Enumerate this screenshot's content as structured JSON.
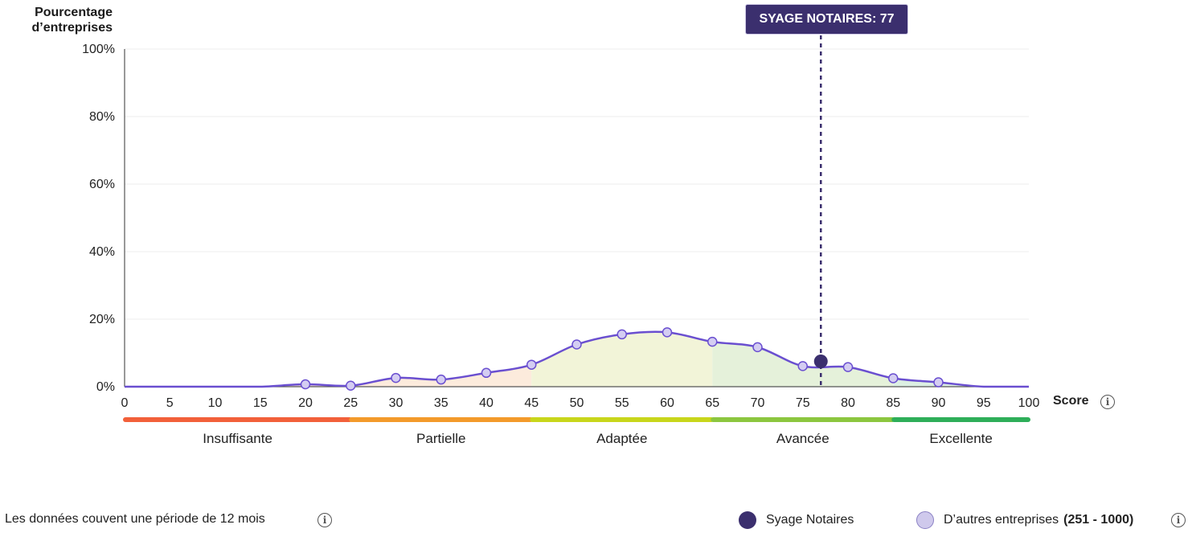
{
  "chart_data": {
    "type": "area",
    "ylabel": "Pourcentage d’entreprises",
    "xlabel": "Score",
    "xlim": [
      0,
      100
    ],
    "ylim": [
      0,
      100
    ],
    "x_ticks": [
      0,
      5,
      10,
      15,
      20,
      25,
      30,
      35,
      40,
      45,
      50,
      55,
      60,
      65,
      70,
      75,
      80,
      85,
      90,
      95,
      100
    ],
    "y_ticks": [
      "0%",
      "20%",
      "40%",
      "60%",
      "80%",
      "100%"
    ],
    "y_tick_values": [
      0,
      20,
      40,
      60,
      80,
      100
    ],
    "grid": true,
    "series": [
      {
        "name": "D’autres entreprises",
        "color": "#6a4fd0",
        "curve_x": [
          0,
          5,
          10,
          15,
          20,
          25,
          30,
          35,
          40,
          45,
          50,
          55,
          60,
          65,
          70,
          75,
          80,
          85,
          90,
          95,
          100
        ],
        "curve_y": [
          0,
          0,
          0,
          0,
          0.7,
          0.3,
          2.6,
          2.1,
          4.1,
          6.5,
          12.5,
          15.5,
          16.1,
          13.3,
          11.7,
          6.1,
          5.8,
          2.5,
          1.3,
          0,
          0
        ],
        "marker_x": [
          20,
          25,
          30,
          35,
          40,
          45,
          50,
          55,
          60,
          65,
          70,
          75,
          80,
          85,
          90
        ],
        "marker_y": [
          0.7,
          0.3,
          2.6,
          2.1,
          4.1,
          6.5,
          12.5,
          15.5,
          16.1,
          13.3,
          11.7,
          6.1,
          5.8,
          2.5,
          1.3
        ]
      }
    ],
    "highlight": {
      "name": "Syage Notaires",
      "x": 77,
      "y": 7.5,
      "label": "SYAGE NOTAIRES: 77",
      "color": "#3b2f6e"
    },
    "bands": [
      {
        "label": "Insuffisante",
        "from": 0,
        "to": 25,
        "color": "#f2603a",
        "fill": "#fbe4dc"
      },
      {
        "label": "Partielle",
        "from": 25,
        "to": 45,
        "color": "#f39a2b",
        "fill": "#fcebdc"
      },
      {
        "label": "Adaptée",
        "from": 45,
        "to": 65,
        "color": "#c8d61b",
        "fill": "#f2f4d8"
      },
      {
        "label": "Avancée",
        "from": 65,
        "to": 85,
        "color": "#8cc63f",
        "fill": "#e5f1da"
      },
      {
        "label": "Excellente",
        "from": 85,
        "to": 100,
        "color": "#2eae59",
        "fill": "#dcefe2"
      }
    ]
  },
  "footer": {
    "note": "Les données couvent une période de 12 mois",
    "legend_highlight": "Syage Notaires",
    "legend_others": "D’autres entreprises",
    "legend_others_range": "(251 - 1000)"
  },
  "icons": {
    "info": "info-icon"
  }
}
